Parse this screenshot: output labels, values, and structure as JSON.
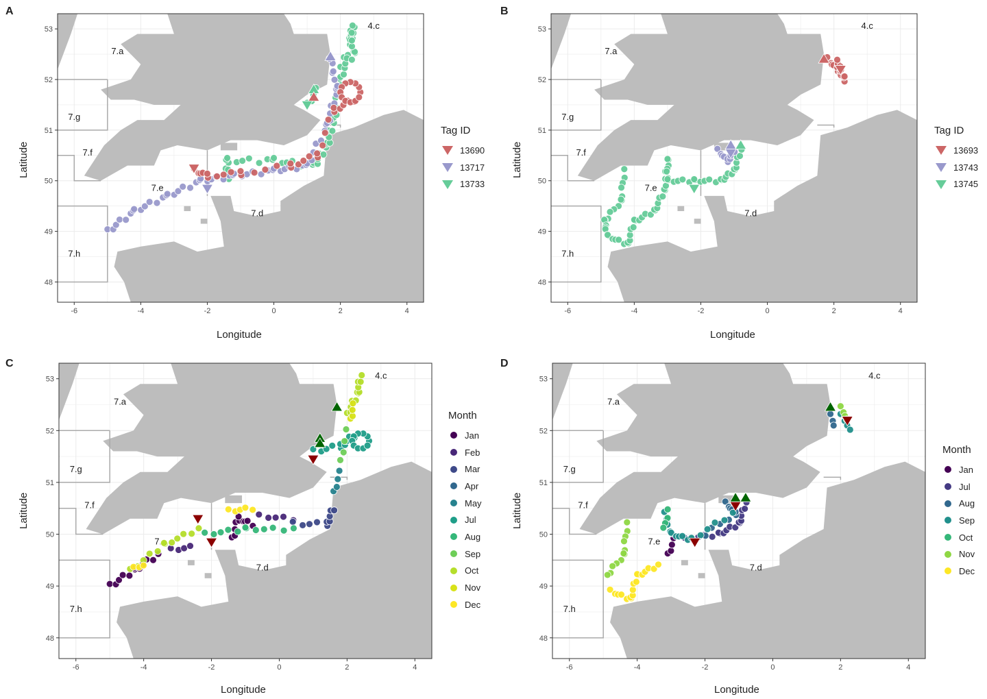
{
  "panels": [
    {
      "id": "A",
      "legend": {
        "title": "Tag ID",
        "items": [
          {
            "label": "13690",
            "color": "#cc6666"
          },
          {
            "label": "13717",
            "color": "#9999cc"
          },
          {
            "label": "13733",
            "color": "#66cc99"
          }
        ]
      }
    },
    {
      "id": "B",
      "legend": {
        "title": "Tag ID",
        "items": [
          {
            "label": "13693",
            "color": "#cc6666"
          },
          {
            "label": "13743",
            "color": "#9999cc"
          },
          {
            "label": "13745",
            "color": "#66cc99"
          }
        ]
      }
    },
    {
      "id": "C",
      "legend": {
        "title": "Month",
        "items": [
          {
            "label": "Jan",
            "color": "#440154"
          },
          {
            "label": "Feb",
            "color": "#482878"
          },
          {
            "label": "Mar",
            "color": "#3e4989"
          },
          {
            "label": "Apr",
            "color": "#31688e"
          },
          {
            "label": "May",
            "color": "#26828e"
          },
          {
            "label": "Jul",
            "color": "#1f9e89"
          },
          {
            "label": "Aug",
            "color": "#35b779"
          },
          {
            "label": "Sep",
            "color": "#6ece58"
          },
          {
            "label": "Oct",
            "color": "#b5de2b"
          },
          {
            "label": "Nov",
            "color": "#d8e219"
          },
          {
            "label": "Dec",
            "color": "#fde725"
          }
        ]
      }
    },
    {
      "id": "D",
      "legend": {
        "title": "Month",
        "items": [
          {
            "label": "Jan",
            "color": "#440154"
          },
          {
            "label": "Jul",
            "color": "#443a83"
          },
          {
            "label": "Aug",
            "color": "#31688e"
          },
          {
            "label": "Sep",
            "color": "#21908c"
          },
          {
            "label": "Oct",
            "color": "#35b779"
          },
          {
            "label": "Nov",
            "color": "#8fd744"
          },
          {
            "label": "Dec",
            "color": "#fde725"
          }
        ]
      }
    }
  ],
  "axes": {
    "xlabel": "Longitude",
    "ylabel": "Latitude",
    "x_ticks": [
      "-6",
      "-4",
      "-2",
      "0",
      "2",
      "4"
    ],
    "y_ticks": [
      "48",
      "49",
      "50",
      "51",
      "52",
      "53"
    ],
    "xlim": [
      -6.5,
      4.5
    ],
    "ylim": [
      47.6,
      53.3
    ]
  },
  "areas": [
    {
      "label": "7.a",
      "lon": -4.7,
      "lat": 52.5
    },
    {
      "label": "7.g",
      "lon": -6.0,
      "lat": 51.2
    },
    {
      "label": "7.f",
      "lon": -5.6,
      "lat": 50.5
    },
    {
      "label": "7.e",
      "lon": -3.5,
      "lat": 49.8
    },
    {
      "label": "7.d",
      "lon": -0.5,
      "lat": 49.3
    },
    {
      "label": "7.h",
      "lon": -6.0,
      "lat": 48.5
    },
    {
      "label": "4.c",
      "lon": 3.0,
      "lat": 53.0
    }
  ],
  "colors": {
    "land": "#bdbdbd",
    "sea": "#ffffff",
    "grid": "#ebebeb",
    "boundary": "#aaaaaa",
    "start_marker": "#006400",
    "end_marker": "#8b0000"
  }
}
